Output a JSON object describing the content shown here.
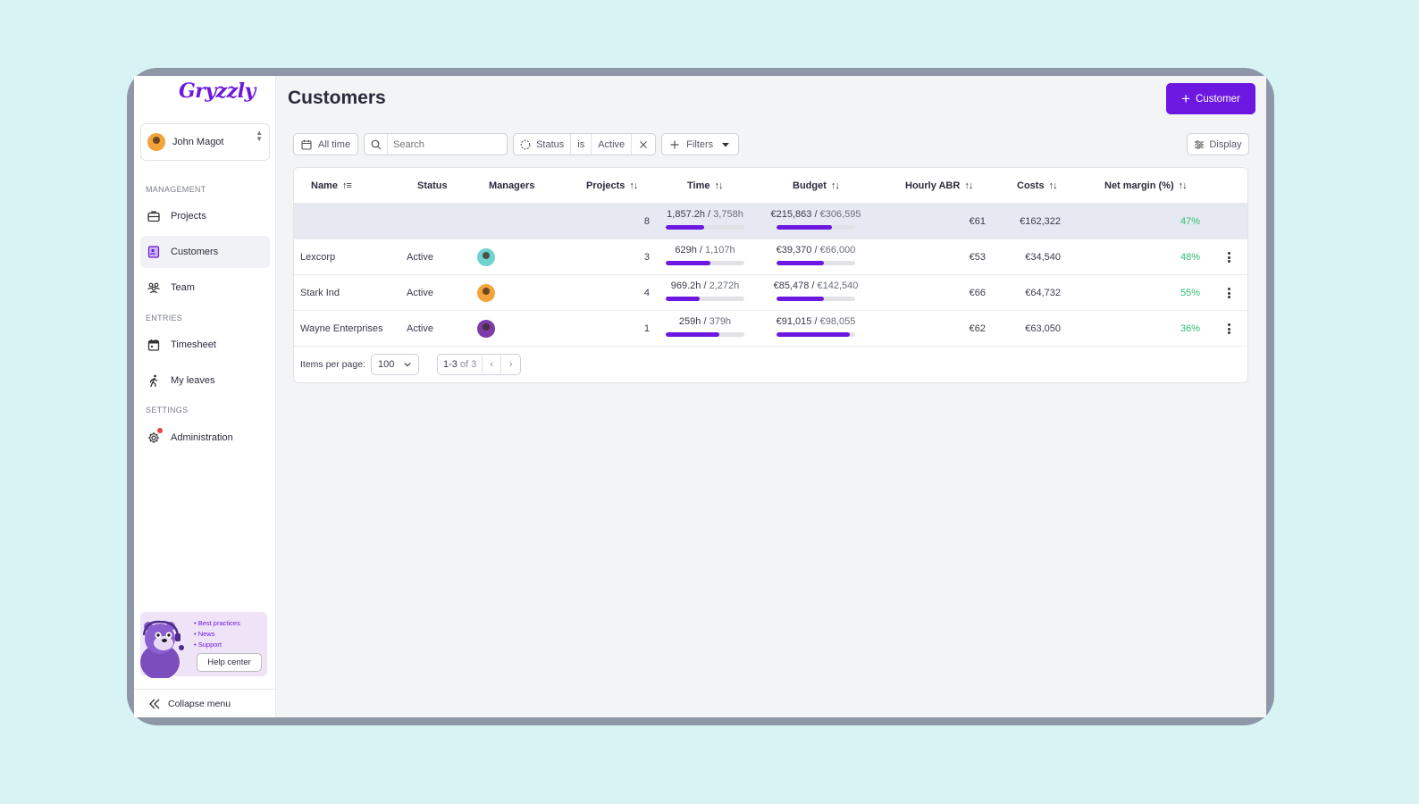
{
  "brand": {
    "logo_text": "Gryzzly",
    "accent": "#6d18e0"
  },
  "user": {
    "name": "John Magot"
  },
  "sidebar": {
    "sections": [
      {
        "label": "MANAGEMENT"
      },
      {
        "label": "ENTRIES"
      },
      {
        "label": "SETTINGS"
      }
    ],
    "items": [
      {
        "label": "Projects",
        "icon": "briefcase-icon"
      },
      {
        "label": "Customers",
        "icon": "contact-card-icon",
        "active": true
      },
      {
        "label": "Team",
        "icon": "team-icon"
      },
      {
        "label": "Timesheet",
        "icon": "calendar-icon"
      },
      {
        "label": "My leaves",
        "icon": "walking-person-icon"
      },
      {
        "label": "Administration",
        "icon": "gear-icon",
        "notification": true
      }
    ],
    "help": {
      "links": [
        "Best practices",
        "News",
        "Support"
      ],
      "button": "Help center"
    },
    "collapse_label": "Collapse menu"
  },
  "main": {
    "title": "Customers",
    "add_button": "Customer",
    "toolbar": {
      "date_filter": "All time",
      "search_placeholder": "Search",
      "status_filter": {
        "field": "Status",
        "op": "is",
        "value": "Active"
      },
      "filters_label": "Filters",
      "display_label": "Display"
    },
    "table": {
      "columns": [
        "Name",
        "Status",
        "Managers",
        "Projects",
        "Time",
        "Budget",
        "Hourly ABR",
        "Costs",
        "Net margin (%)"
      ],
      "total": {
        "projects": "8",
        "time_used": "1,857.2h",
        "time_total": "3,758h",
        "time_pct": 49,
        "budget_used": "€215,863",
        "budget_total": "€306,595",
        "budget_pct": 70,
        "abr": "€61",
        "costs": "€162,322",
        "margin": "47%"
      },
      "rows": [
        {
          "name": "Lexcorp",
          "status": "Active",
          "manager_avatar": "teal",
          "projects": "3",
          "time_used": "629h",
          "time_total": "1,107h",
          "time_pct": 57,
          "budget_used": "€39,370",
          "budget_total": "€66,000",
          "budget_pct": 60,
          "abr": "€53",
          "costs": "€34,540",
          "margin": "48%"
        },
        {
          "name": "Stark Ind",
          "status": "Active",
          "manager_avatar": "orange",
          "projects": "4",
          "time_used": "969.2h",
          "time_total": "2,272h",
          "time_pct": 43,
          "budget_used": "€85,478",
          "budget_total": "€142,540",
          "budget_pct": 60,
          "abr": "€66",
          "costs": "€64,732",
          "margin": "55%"
        },
        {
          "name": "Wayne Enterprises",
          "status": "Active",
          "manager_avatar": "purple",
          "projects": "1",
          "time_used": "259h",
          "time_total": "379h",
          "time_pct": 68,
          "budget_used": "€91,015",
          "budget_total": "€98,055",
          "budget_pct": 93,
          "abr": "€62",
          "costs": "€63,050",
          "margin": "36%"
        }
      ]
    },
    "pagination": {
      "label": "Items per page:",
      "per_page": "100",
      "range": "1-3",
      "of": "of 3"
    }
  }
}
